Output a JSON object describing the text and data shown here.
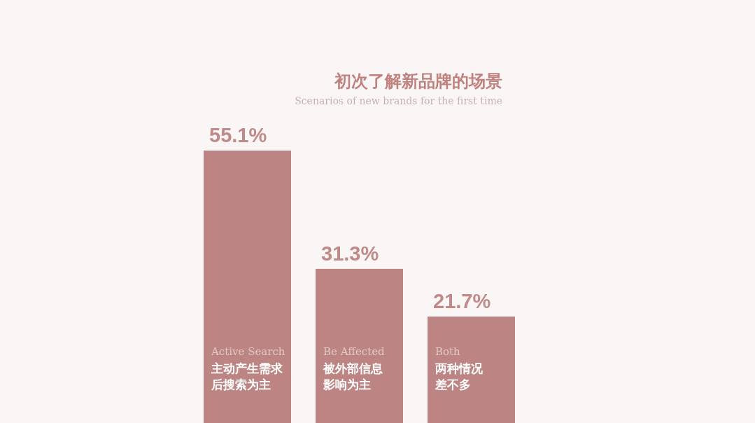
{
  "chart_data": {
    "type": "bar",
    "title": "初次了解新品牌的场景",
    "subtitle": "Scenarios of new brands for the first time",
    "categories": [
      "Active Search\n主动产生需求后搜索为主",
      "Be Affected\n被外部信息影响为主",
      "Both\n两种情况差不多"
    ],
    "values": [
      55.1,
      31.3,
      21.7
    ],
    "value_labels": [
      "55.1%",
      "31.3%",
      "21.7%"
    ],
    "color": "#bc8482"
  }
}
